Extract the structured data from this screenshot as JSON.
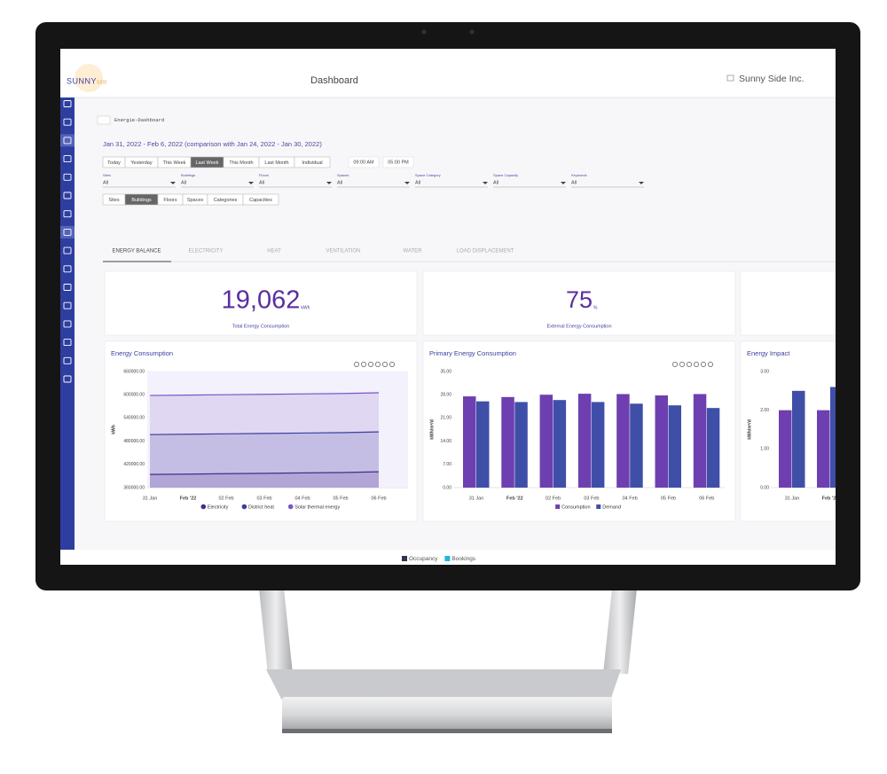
{
  "header": {
    "logo_main": "SUNNY",
    "logo_sub": "SIDE",
    "title": "Dashboard",
    "company": "Sunny Side Inc."
  },
  "breadcrumb": "Energie-Dashboard",
  "date_range": "Jan 31, 2022 - Feb 6, 2022 (comparison with Jan 24, 2022 - Jan 30, 2022)",
  "period_buttons": {
    "items": [
      "Today",
      "Yesterday",
      "This Week",
      "Last Week",
      "This Month",
      "Last Month",
      "Individual"
    ],
    "active": 3
  },
  "times": [
    "09:00 AM",
    "05:00 PM"
  ],
  "filters": [
    {
      "label": "Sites",
      "value": "All"
    },
    {
      "label": "Buildings",
      "value": "All"
    },
    {
      "label": "Floors",
      "value": "All"
    },
    {
      "label": "Spaces",
      "value": "All"
    },
    {
      "label": "Space Category",
      "value": "All"
    },
    {
      "label": "Space Capacity",
      "value": "All"
    },
    {
      "label": "Keywords",
      "value": "All"
    }
  ],
  "scope_buttons": {
    "items": [
      "Sites",
      "Buildings",
      "Floors",
      "Spaces",
      "Categories",
      "Capacities"
    ],
    "active": 1
  },
  "tabs": {
    "items": [
      "ENERGY BALANCE",
      "ELECTRICITY",
      "HEAT",
      "VENTILATION",
      "WATER",
      "LOAD DISPLACEMENT"
    ],
    "active": 0
  },
  "kpis": [
    {
      "value": "19,062",
      "unit": "kWh",
      "label": "Total Energy Consumption"
    },
    {
      "value": "75",
      "unit": "%",
      "label": "External Energy Consumption"
    }
  ],
  "charts": [
    {
      "type": "area",
      "title": "Energy Consumption",
      "ylabel": "kWh",
      "categories": [
        "31 Jan",
        "Feb '22",
        "02 Feb",
        "03 Feb",
        "04 Feb",
        "05 Feb",
        "06 Feb"
      ],
      "series": [
        {
          "name": "Electricity",
          "color": "#4b2a8f",
          "values": [
            394000,
            395000,
            396000,
            397000,
            398000,
            399000,
            401000
          ]
        },
        {
          "name": "District heat",
          "color": "#3a3f9e",
          "values": [
            497000,
            498000,
            499000,
            500000,
            501000,
            502000,
            504000
          ]
        },
        {
          "name": "Solar thermal energy",
          "color": "#7b52c9",
          "values": [
            598000,
            599000,
            600000,
            601000,
            602000,
            603000,
            605000
          ]
        }
      ],
      "ylim": [
        360000,
        660000
      ],
      "yticks": [
        {
          "value": 360000,
          "label": "360000.00"
        },
        {
          "value": 420000,
          "label": "420000.00"
        },
        {
          "value": 480000,
          "label": "480000.00"
        },
        {
          "value": 540000,
          "label": "540000.00"
        },
        {
          "value": 600000,
          "label": "600000.00"
        },
        {
          "value": 660000,
          "label": "660000.00"
        }
      ],
      "grid": true
    },
    {
      "type": "bar",
      "title": "Primary Energy Consumption",
      "ylabel": "kWh/m²/d",
      "categories": [
        "31 Jan",
        "Feb '22",
        "02 Feb",
        "03 Feb",
        "04 Feb",
        "05 Feb",
        "06 Feb"
      ],
      "series": [
        {
          "name": "Consumption",
          "color": "#6e3fb0",
          "values": [
            27.5,
            27.3,
            28.0,
            28.3,
            28.2,
            27.8,
            28.2
          ]
        },
        {
          "name": "Demand",
          "color": "#3f4fa8",
          "values": [
            26.0,
            25.8,
            26.4,
            25.8,
            25.3,
            24.8,
            24.0
          ]
        }
      ],
      "ylim": [
        0,
        35
      ],
      "yticks": [
        {
          "value": 0,
          "label": "0.00"
        },
        {
          "value": 7,
          "label": "7.00"
        },
        {
          "value": 14,
          "label": "14.00"
        },
        {
          "value": 21,
          "label": "21.00"
        },
        {
          "value": 28,
          "label": "28.00"
        },
        {
          "value": 35,
          "label": "35.00"
        }
      ],
      "grid": false
    },
    {
      "type": "bar",
      "title": "Energy Impact",
      "ylabel": "kWh/m²/d",
      "categories": [
        "31 Jan",
        "Feb '22"
      ],
      "series": [
        {
          "name": "Consumption",
          "color": "#6e3fb0",
          "values": [
            2.0,
            2.0
          ]
        },
        {
          "name": "Demand",
          "color": "#3f4fa8",
          "values": [
            2.5,
            2.6
          ]
        }
      ],
      "ylim": [
        0,
        3
      ],
      "yticks": [
        {
          "value": 0,
          "label": "0.00"
        },
        {
          "value": 1,
          "label": "1.00"
        },
        {
          "value": 2,
          "label": "2.00"
        },
        {
          "value": 3,
          "label": "3.00"
        }
      ],
      "grid": false,
      "legend": false
    }
  ],
  "footer_legend": [
    {
      "name": "Occupancy",
      "color": "#2f3650"
    },
    {
      "name": "Bookings",
      "color": "#20b8dc"
    }
  ]
}
